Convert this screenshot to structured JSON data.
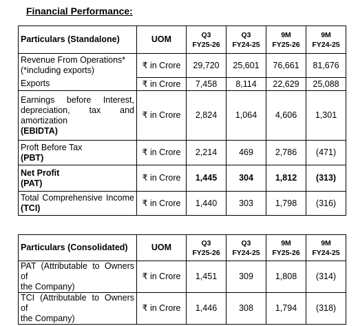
{
  "title": "Financial Performance:",
  "standalone": {
    "headers": {
      "particulars": "Particulars (Standalone)",
      "uom": "UOM",
      "p1a": "Q3",
      "p1b": "FY25-26",
      "p2a": "Q3",
      "p2b": "FY24-25",
      "p3a": "9M",
      "p3b": "FY25-26",
      "p4a": "9M",
      "p4b": "FY24-25"
    },
    "rows": {
      "revenue": {
        "label1": "Revenue From Operations*",
        "label2": "(*including exports)",
        "uom": "₹ in Crore",
        "v1": "29,720",
        "v2": "25,601",
        "v3": "76,661",
        "v4": "81,676"
      },
      "exports": {
        "label": "Exports",
        "uom": "₹ in Crore",
        "v1": "7,458",
        "v2": "8,114",
        "v3": "22,629",
        "v4": "25,088"
      },
      "ebidta": {
        "label1": "Earnings before Interest,",
        "label2": "depreciation, tax and",
        "label3": "amortization",
        "label4": "(EBIDTA)",
        "uom": "₹ in Crore",
        "v1": "2,824",
        "v2": "1,064",
        "v3": "4,606",
        "v4": "1,301"
      },
      "pbt": {
        "label1": "Proft Before Tax",
        "label2": "(PBT)",
        "uom": "₹ in Crore",
        "v1": "2,214",
        "v2": "469",
        "v3": "2,786",
        "v4": "(471)"
      },
      "pat": {
        "label1": "Net Profit",
        "label2": "(PAT)",
        "uom": "₹ in Crore",
        "v1": "1,445",
        "v2": "304",
        "v3": "1,812",
        "v4": "(313)"
      },
      "tci": {
        "label1": "Total Comprehensive Income",
        "label2": "(TCI)",
        "uom": "₹ in Crore",
        "v1": "1,440",
        "v2": "303",
        "v3": "1,798",
        "v4": "(316)"
      }
    }
  },
  "consolidated": {
    "headers": {
      "particulars": "Particulars (Consolidated)",
      "uom": "UOM",
      "p1a": "Q3",
      "p1b": "FY25-26",
      "p2a": "Q3",
      "p2b": "FY24-25",
      "p3a": "9M",
      "p3b": "FY25-26",
      "p4a": "9M",
      "p4b": "FY24-25"
    },
    "rows": {
      "pat": {
        "label1": "PAT (Attributable to Owners of",
        "label2": "the Company)",
        "uom": "₹ in Crore",
        "v1": "1,451",
        "v2": "309",
        "v3": "1,808",
        "v4": "(314)"
      },
      "tci": {
        "label1": "TCI (Attributable to Owners of",
        "label2": "the Company)",
        "uom": "₹ in Crore",
        "v1": "1,446",
        "v2": "308",
        "v3": "1,794",
        "v4": "(318)"
      }
    }
  }
}
